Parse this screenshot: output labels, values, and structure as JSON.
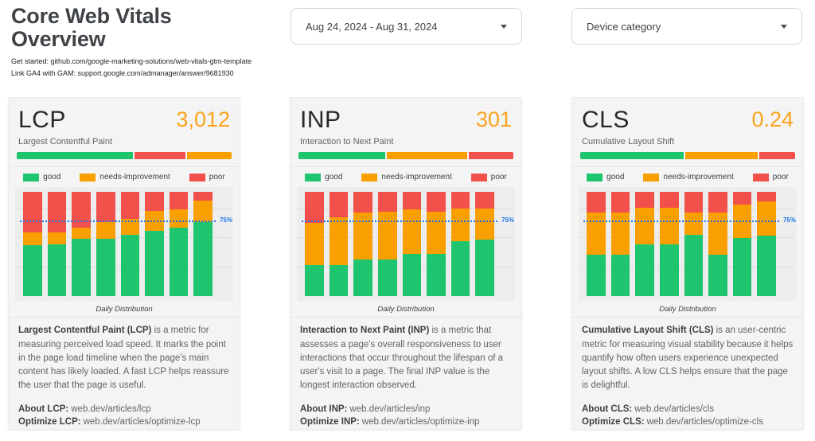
{
  "page": {
    "title": "Core Web Vitals Overview",
    "subtitle_lines": [
      "Get started: github.com/google-marketing-solutions/web-vitals-gtm-template",
      "Link GA4 with GAM: support.google.com/admanager/answer/9681930"
    ]
  },
  "filters": {
    "date_range": "Aug 24, 2024 - Aug 31, 2024",
    "device_category": "Device category"
  },
  "colors": {
    "good": "#1ec46e",
    "needs_improvement": "#f9a000",
    "poor": "#f2504b",
    "value_accent": "#faa21b",
    "ref_line": "#1a73e8"
  },
  "legend": {
    "items": [
      {
        "label": "good",
        "key": "good"
      },
      {
        "label": "needs-improvement",
        "key": "needs_improvement"
      },
      {
        "label": "poor",
        "key": "poor"
      }
    ]
  },
  "cards": [
    {
      "metric": "LCP",
      "value": "3,012",
      "subtitle": "Largest Contentful Paint",
      "daily_label": "Daily Distribution",
      "description": {
        "bold": "Largest Contentful Paint (LCP)",
        "rest": " is a metric for measuring perceived load speed. It marks the point in the page load timeline when the page's main content has likely loaded. A fast LCP helps reassure the user that the page is useful."
      },
      "about": {
        "label": "About LCP:",
        "url": "web.dev/articles/lcp"
      },
      "optimize": {
        "label": "Optimize LCP:",
        "url": "web.dev/articles/optimize-lcp"
      }
    },
    {
      "metric": "INP",
      "value": "301",
      "subtitle": "Interaction to Next Paint",
      "daily_label": "Daily Distribution",
      "description": {
        "bold": "Interaction to Next Paint (INP)",
        "rest": " is a metric that assesses a page's overall responsiveness to user interactions that occur throughout the lifespan of a user's visit to a page. The final INP value is the longest interaction observed."
      },
      "about": {
        "label": "About INP:",
        "url": "web.dev/articles/inp"
      },
      "optimize": {
        "label": "Optimize INP:",
        "url": "web.dev/articles/optimize-inp"
      }
    },
    {
      "metric": "CLS",
      "value": "0.24",
      "subtitle": "Cumulative Layout Shift",
      "daily_label": "Daily Distribution",
      "description": {
        "bold": "Cumulative Layout Shift (CLS)",
        "rest": " is an user-centric metric for measuring visual stability because it helps quantify how often users experience unexpected layout shifts. A low CLS helps ensure that the page is delightful."
      },
      "about": {
        "label": "About CLS:",
        "url": "web.dev/articles/cls"
      },
      "optimize": {
        "label": "Optimize CLS:",
        "url": "web.dev/articles/optimize-cls"
      }
    }
  ],
  "chart_data": [
    {
      "metric": "LCP",
      "summary": {
        "type": "bar",
        "subtype": "horizontal-stacked-100",
        "units": "%",
        "segments": [
          {
            "name": "good",
            "key": "good",
            "pct": 55
          },
          {
            "name": "poor",
            "key": "poor",
            "pct": 24
          },
          {
            "name": "needs-improvement",
            "key": "needs_improvement",
            "pct": 21
          }
        ]
      },
      "daily": {
        "type": "bar",
        "subtype": "vertical-stacked-100",
        "units": "%",
        "title": "Daily Distribution",
        "n_bars": 8,
        "x_tick_labels": [],
        "ref_line": {
          "pct": 75,
          "label": "75%"
        },
        "series": [
          {
            "name": "good",
            "key": "good",
            "values": [
              49,
              50,
              55,
              55,
              59,
              63,
              66,
              71
            ]
          },
          {
            "name": "needs-improvement",
            "key": "needs_improvement",
            "values": [
              12,
              11,
              11,
              16,
              15,
              19,
              17,
              21
            ]
          },
          {
            "name": "poor",
            "key": "poor",
            "values": [
              39,
              39,
              34,
              29,
              26,
              18,
              17,
              8
            ]
          }
        ]
      }
    },
    {
      "metric": "INP",
      "summary": {
        "type": "bar",
        "subtype": "horizontal-stacked-100",
        "units": "%",
        "segments": [
          {
            "name": "good",
            "key": "good",
            "pct": 41
          },
          {
            "name": "needs-improvement",
            "key": "needs_improvement",
            "pct": 38
          },
          {
            "name": "poor",
            "key": "poor",
            "pct": 21
          }
        ]
      },
      "daily": {
        "type": "bar",
        "subtype": "vertical-stacked-100",
        "units": "%",
        "title": "Daily Distribution",
        "n_bars": 8,
        "x_tick_labels": [],
        "ref_line": {
          "pct": 75,
          "label": "75%"
        },
        "series": [
          {
            "name": "good",
            "key": "good",
            "values": [
              30,
              30,
              35,
              35,
              41,
              41,
              53,
              54
            ]
          },
          {
            "name": "needs-improvement",
            "key": "needs_improvement",
            "values": [
              40,
              46,
              45,
              46,
              42,
              40,
              31,
              30
            ]
          },
          {
            "name": "poor",
            "key": "poor",
            "values": [
              30,
              24,
              20,
              19,
              17,
              19,
              16,
              16
            ]
          }
        ]
      }
    },
    {
      "metric": "CLS",
      "summary": {
        "type": "bar",
        "subtype": "horizontal-stacked-100",
        "units": "%",
        "segments": [
          {
            "name": "good",
            "key": "good",
            "pct": 49
          },
          {
            "name": "needs-improvement",
            "key": "needs_improvement",
            "pct": 34
          },
          {
            "name": "poor",
            "key": "poor",
            "pct": 17
          }
        ]
      },
      "daily": {
        "type": "bar",
        "subtype": "vertical-stacked-100",
        "units": "%",
        "title": "Daily Distribution",
        "n_bars": 8,
        "x_tick_labels": [],
        "ref_line": {
          "pct": 75,
          "label": "75%"
        },
        "series": [
          {
            "name": "good",
            "key": "good",
            "values": [
              40,
              40,
              50,
              50,
              59,
              40,
              56,
              58
            ]
          },
          {
            "name": "needs-improvement",
            "key": "needs_improvement",
            "values": [
              40,
              40,
              35,
              35,
              21,
              40,
              32,
              33
            ]
          },
          {
            "name": "poor",
            "key": "poor",
            "values": [
              20,
              20,
              15,
              15,
              20,
              20,
              12,
              9
            ]
          }
        ]
      }
    }
  ]
}
